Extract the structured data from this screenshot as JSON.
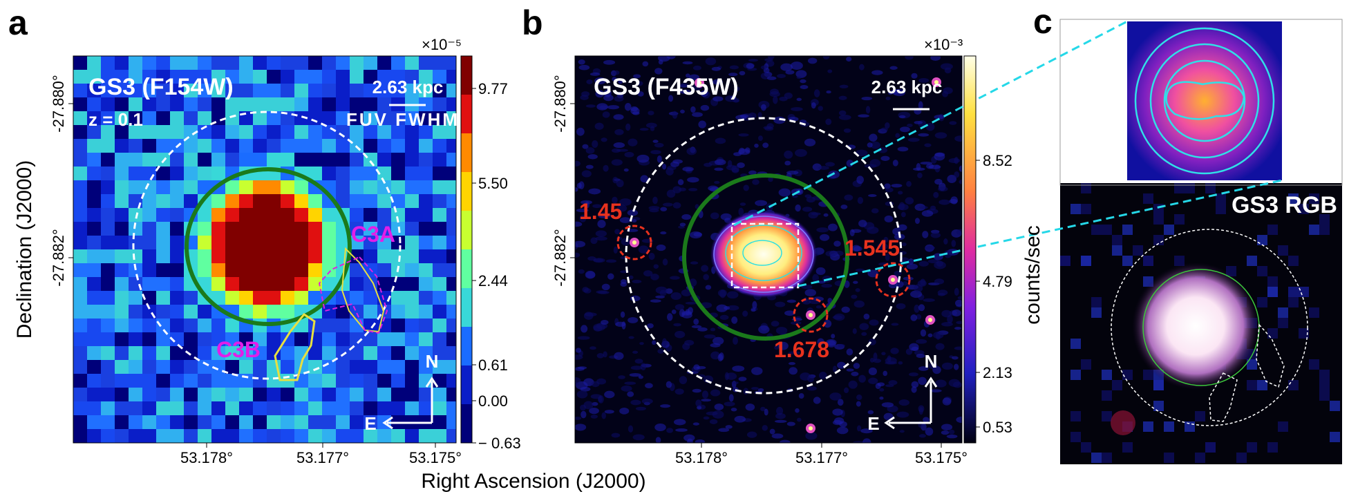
{
  "ylabel": "Declination (J2000)",
  "xlabel": "Right Ascension (J2000)",
  "panels": [
    {
      "letter": "a",
      "title": "GS3 (F154W)",
      "redshift": "z = 0.1",
      "scale_bar": "2.63 kpc",
      "beam": "FUV FWHM",
      "regions": [
        "C3A",
        "C3B"
      ],
      "compass": {
        "north": "N",
        "east": "E"
      },
      "colorbar": {
        "exponent": "×10⁻⁵",
        "ticks": [
          "9.77",
          "5.50",
          "2.44",
          "0.61",
          "0.00",
          "− 0.63"
        ]
      },
      "xticks": [
        "53.178°",
        "53.177°",
        "53.175°"
      ],
      "yticks": [
        "-27.880°",
        "-27.882°"
      ]
    },
    {
      "letter": "b",
      "title": "GS3 (F435W)",
      "scale_bar": "2.63 kpc",
      "redshifts": [
        "1.45",
        "1.545",
        "1.678"
      ],
      "compass": {
        "north": "N",
        "east": "E"
      },
      "colorbar": {
        "exponent": "×10⁻³",
        "label": "counts/sec",
        "ticks": [
          "8.52",
          "4.79",
          "2.13",
          "0.53"
        ]
      },
      "xticks": [
        "53.178°",
        "53.177°",
        "53.175°"
      ],
      "yticks": [
        "-27.880°",
        "-27.882°"
      ]
    },
    {
      "letter": "c",
      "title": "GS3 RGB"
    }
  ]
}
